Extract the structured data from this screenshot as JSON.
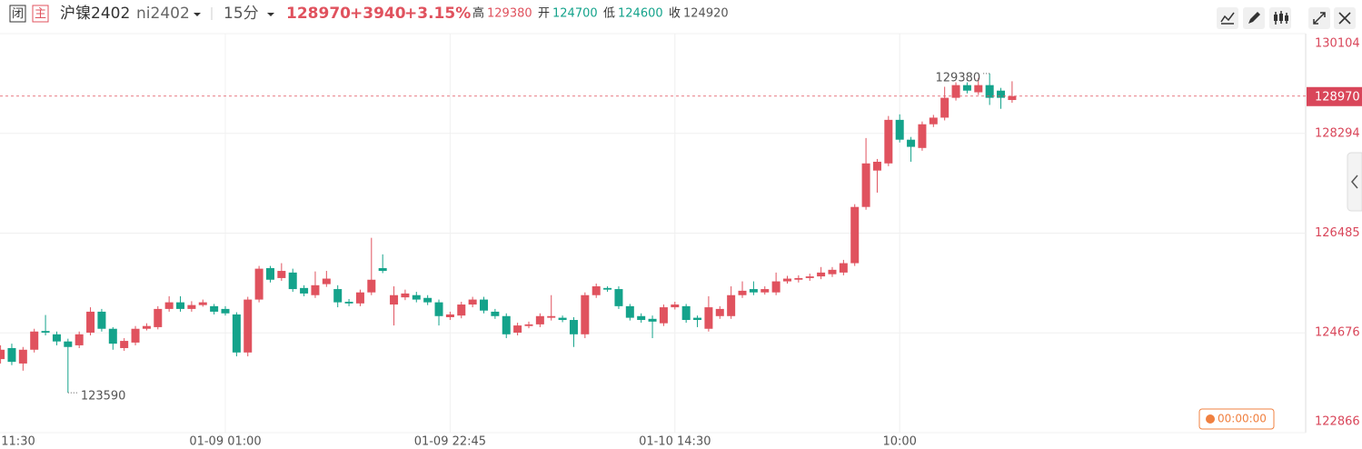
{
  "header": {
    "close_tag": "闭",
    "main_tag": "主",
    "name": "沪镍2402",
    "code": "ni2402",
    "period": "15分",
    "price": "128970",
    "change": "+3940",
    "change_pct": "+3.15%",
    "stats": [
      {
        "label": "高",
        "value": "129380"
      },
      {
        "label": "开",
        "value": "124700"
      },
      {
        "label": "低",
        "value": "124600"
      },
      {
        "label": "收",
        "value": "124920"
      }
    ]
  },
  "countdown": "00:00:00",
  "chart_data": {
    "type": "candlestick",
    "up_color": "#e0525e",
    "down_color": "#14a38b",
    "grid": true,
    "ylim": [
      122866,
      130104
    ],
    "yticks": [
      122866,
      124676,
      126485,
      128294,
      130104
    ],
    "categories": [
      null,
      "11:30",
      null,
      null,
      null,
      null,
      null,
      null,
      null,
      null,
      null,
      null,
      null,
      null,
      null,
      null,
      null,
      null,
      null,
      null,
      "01-09 01:00",
      null,
      null,
      null,
      null,
      null,
      null,
      null,
      null,
      null,
      null,
      null,
      null,
      null,
      null,
      null,
      null,
      null,
      null,
      null,
      "01-09 22:45",
      null,
      null,
      null,
      null,
      null,
      null,
      null,
      null,
      null,
      null,
      null,
      null,
      null,
      null,
      null,
      null,
      null,
      null,
      null,
      "01-10 14:30",
      null,
      null,
      null,
      null,
      null,
      null,
      null,
      null,
      null,
      null,
      null,
      null,
      null,
      null,
      null,
      null,
      null,
      null,
      null,
      "10:00",
      null,
      null,
      null,
      null,
      null,
      null,
      null,
      null,
      null,
      null
    ],
    "open": [
      124200,
      124400,
      124120,
      124370,
      124710,
      124650,
      124520,
      124450,
      124680,
      125060,
      124750,
      124400,
      124500,
      124750,
      124780,
      125110,
      125230,
      125110,
      125180,
      125160,
      125110,
      125010,
      124320,
      125280,
      125850,
      125670,
      125770,
      125490,
      125360,
      125560,
      125470,
      125240,
      125210,
      125410,
      125850,
      125190,
      125320,
      125360,
      125310,
      125230,
      124960,
      124990,
      125190,
      125280,
      125060,
      124980,
      124680,
      124800,
      124830,
      124950,
      124950,
      124910,
      124650,
      125360,
      125490,
      125470,
      125160,
      124980,
      124930,
      124850,
      125140,
      125160,
      124950,
      124750,
      124980,
      124980,
      125360,
      125470,
      125410,
      125410,
      125610,
      125640,
      125670,
      125700,
      125740,
      125770,
      125940,
      126960,
      127620,
      127750,
      128540,
      128180,
      128030,
      128460,
      128580,
      128940,
      129170,
      129040,
      129170,
      129070,
      128900
    ],
    "high": [
      124450,
      124480,
      124420,
      124750,
      125000,
      124700,
      124570,
      124700,
      125140,
      125110,
      124780,
      124580,
      124800,
      124850,
      125160,
      125340,
      125340,
      125250,
      125280,
      125200,
      125160,
      125050,
      125330,
      125890,
      125890,
      125940,
      125840,
      125540,
      125790,
      125800,
      125540,
      125290,
      125460,
      126400,
      126100,
      125520,
      125460,
      125420,
      125360,
      125280,
      125060,
      125240,
      125330,
      125330,
      125110,
      125030,
      124860,
      124880,
      125030,
      125360,
      124990,
      124960,
      125410,
      125570,
      125520,
      125520,
      125200,
      125030,
      124990,
      125190,
      125240,
      125200,
      124990,
      125340,
      125160,
      125520,
      125610,
      125610,
      125520,
      125770,
      125710,
      125720,
      125750,
      125870,
      125870,
      126000,
      127010,
      128210,
      127830,
      128610,
      128640,
      128230,
      128510,
      128630,
      129140,
      129220,
      129220,
      129300,
      129380,
      129120,
      129240
    ],
    "low": [
      124120,
      124090,
      123990,
      124320,
      124630,
      124450,
      123590,
      124400,
      124630,
      124700,
      124370,
      124350,
      124450,
      124720,
      124740,
      125060,
      125060,
      125060,
      125150,
      125010,
      124990,
      124250,
      124250,
      125230,
      125590,
      125620,
      125420,
      125340,
      125310,
      125510,
      125140,
      125160,
      125160,
      125360,
      125760,
      124810,
      125270,
      125230,
      125180,
      124810,
      124910,
      124940,
      125140,
      125030,
      124930,
      124580,
      124630,
      124760,
      124780,
      124900,
      124870,
      124420,
      124580,
      125310,
      125420,
      125110,
      124900,
      124860,
      124580,
      124800,
      125100,
      124860,
      124780,
      124700,
      124930,
      124930,
      125310,
      125360,
      125370,
      125360,
      125570,
      125590,
      125620,
      125650,
      125690,
      125720,
      125890,
      126910,
      127220,
      127700,
      128130,
      127780,
      127980,
      128410,
      128530,
      128890,
      129020,
      128990,
      128810,
      128740,
      128850
    ],
    "close": [
      124370,
      124150,
      124370,
      124700,
      124680,
      124520,
      124420,
      124650,
      125060,
      124750,
      124480,
      124530,
      124750,
      124800,
      125110,
      125230,
      125110,
      125180,
      125230,
      125060,
      125030,
      124320,
      125280,
      125840,
      125640,
      125800,
      125470,
      125390,
      125540,
      125660,
      125230,
      125210,
      125410,
      125640,
      125800,
      125360,
      125390,
      125280,
      125230,
      124980,
      125010,
      125190,
      125280,
      125080,
      124980,
      124650,
      124810,
      124830,
      124980,
      124980,
      124910,
      124650,
      125360,
      125520,
      125460,
      125160,
      124950,
      124910,
      124880,
      125140,
      125190,
      124910,
      124910,
      125140,
      125110,
      125360,
      125440,
      125410,
      125470,
      125610,
      125660,
      125670,
      125700,
      125770,
      125820,
      125940,
      126960,
      127750,
      127780,
      128540,
      128180,
      128050,
      128460,
      128580,
      128940,
      129170,
      129070,
      129170,
      128940,
      128940,
      128970
    ]
  }
}
